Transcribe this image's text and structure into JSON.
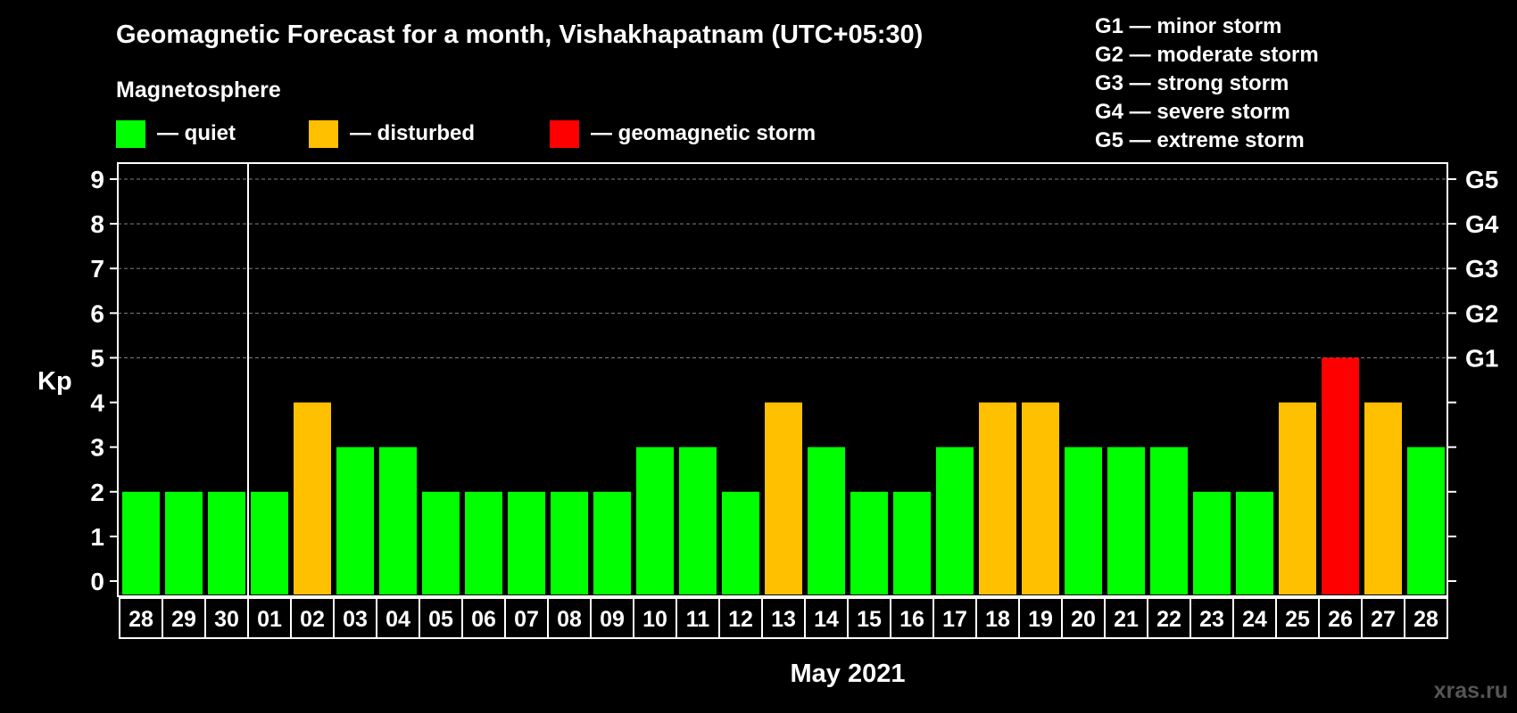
{
  "chart_data": {
    "type": "bar",
    "title": "Geomagnetic Forecast for a month, Vishakhapatnam (UTC+05:30)",
    "subtitle": "Magnetosphere",
    "ylabel": "Kp",
    "xlabel": "May 2021",
    "ylim": [
      0,
      9
    ],
    "yticks": [
      "0",
      "1",
      "2",
      "3",
      "4",
      "5",
      "6",
      "7",
      "8",
      "9"
    ],
    "right_axis_labels": [
      {
        "kp": 5,
        "label": "G1"
      },
      {
        "kp": 6,
        "label": "G2"
      },
      {
        "kp": 7,
        "label": "G3"
      },
      {
        "kp": 8,
        "label": "G4"
      },
      {
        "kp": 9,
        "label": "G5"
      }
    ],
    "categories": [
      "28",
      "29",
      "30",
      "01",
      "02",
      "03",
      "04",
      "05",
      "06",
      "07",
      "08",
      "09",
      "10",
      "11",
      "12",
      "13",
      "14",
      "15",
      "16",
      "17",
      "18",
      "19",
      "20",
      "21",
      "22",
      "23",
      "24",
      "25",
      "26",
      "27",
      "28"
    ],
    "values": [
      2,
      2,
      2,
      2,
      4,
      3,
      3,
      2,
      2,
      2,
      2,
      2,
      3,
      3,
      2,
      4,
      3,
      2,
      2,
      3,
      4,
      4,
      3,
      3,
      3,
      2,
      2,
      4,
      5,
      4,
      3
    ],
    "status": [
      "quiet",
      "quiet",
      "quiet",
      "quiet",
      "disturbed",
      "quiet",
      "quiet",
      "quiet",
      "quiet",
      "quiet",
      "quiet",
      "quiet",
      "quiet",
      "quiet",
      "quiet",
      "disturbed",
      "quiet",
      "quiet",
      "quiet",
      "quiet",
      "disturbed",
      "disturbed",
      "quiet",
      "quiet",
      "quiet",
      "quiet",
      "quiet",
      "disturbed",
      "storm",
      "disturbed",
      "quiet"
    ],
    "month_divider_after_index": 2,
    "legend": [
      {
        "key": "quiet",
        "label": "— quiet",
        "color": "#00ff00"
      },
      {
        "key": "disturbed",
        "label": "— disturbed",
        "color": "#ffc000"
      },
      {
        "key": "storm",
        "label": "— geomagnetic storm",
        "color": "#ff0000"
      }
    ],
    "storm_scale": [
      "G1 — minor storm",
      "G2 — moderate storm",
      "G3 — strong storm",
      "G4 — severe storm",
      "G5 — extreme storm"
    ],
    "grid": true
  },
  "watermark": "xras.ru"
}
